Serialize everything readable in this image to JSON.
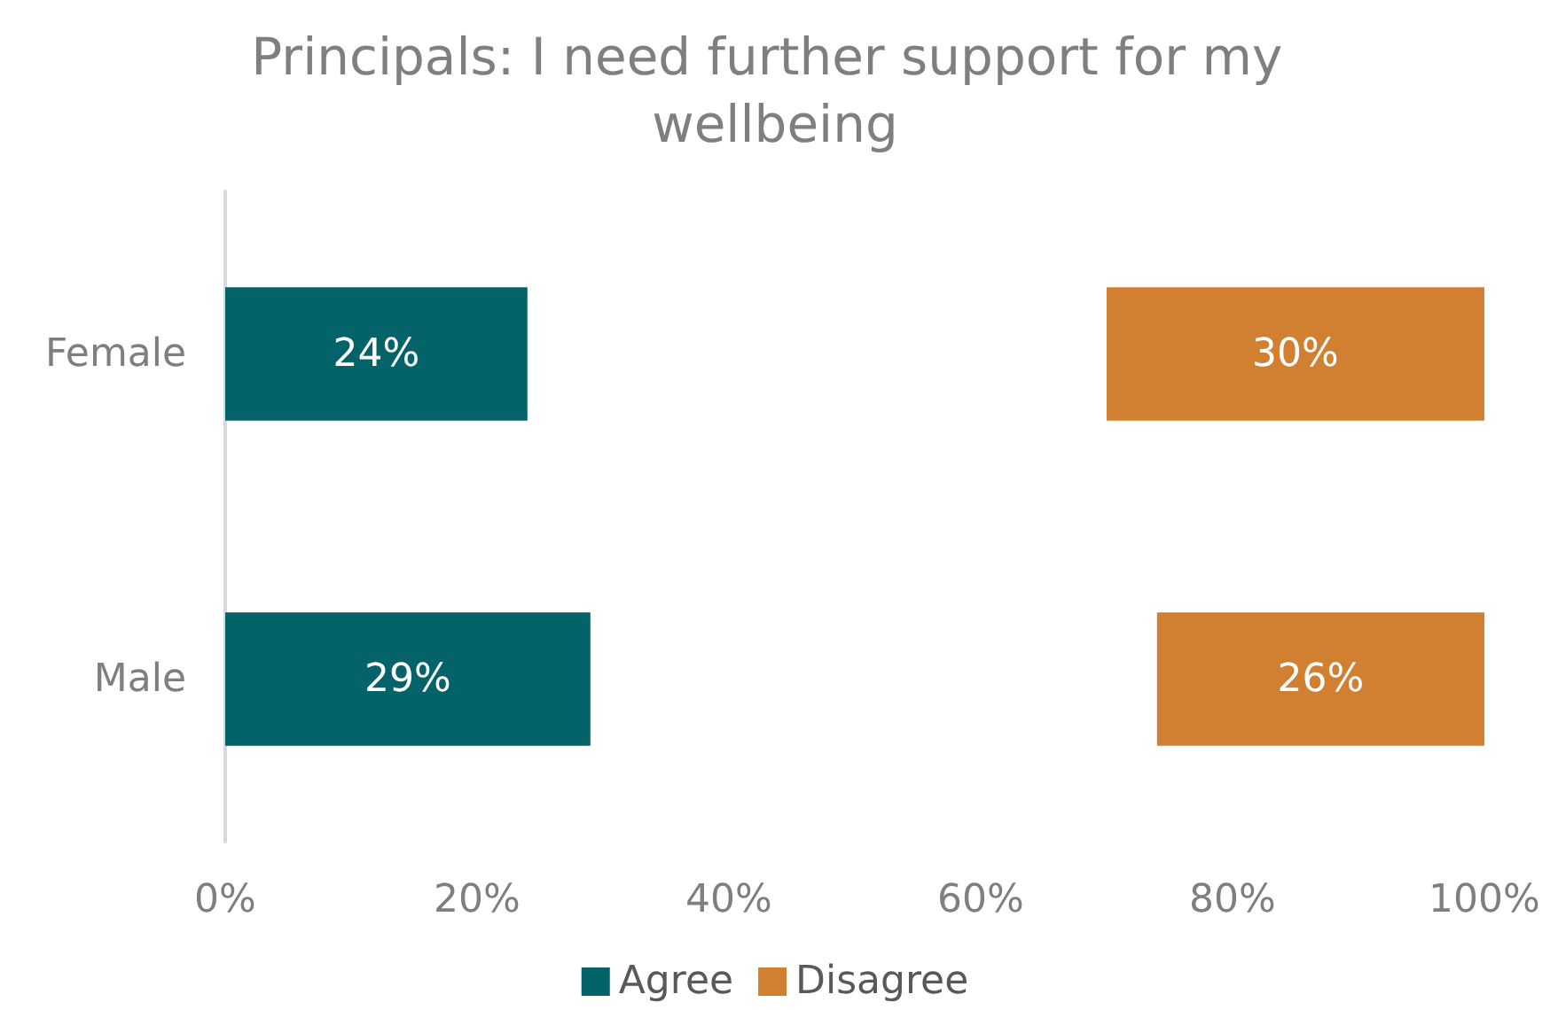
{
  "chart_data": {
    "type": "bar",
    "orientation": "horizontal",
    "title": "Principals: I need further support for my wellbeing",
    "categories": [
      "Female",
      "Male"
    ],
    "series": [
      {
        "name": "Agree",
        "color": "#036369",
        "values": [
          24,
          29
        ],
        "base": [
          0,
          0
        ],
        "value_labels": [
          "24%",
          "29%"
        ]
      },
      {
        "name": "Disagree",
        "color": "#d17f30",
        "values": [
          30,
          26
        ],
        "base": [
          70,
          74
        ],
        "value_labels": [
          "30%",
          "26%"
        ]
      }
    ],
    "xlim": [
      0,
      100
    ],
    "xticks": [
      {
        "value": 0,
        "label": "0%"
      },
      {
        "value": 20,
        "label": "20%"
      },
      {
        "value": 40,
        "label": "40%"
      },
      {
        "value": 60,
        "label": "60%"
      },
      {
        "value": 80,
        "label": "80%"
      },
      {
        "value": 100,
        "label": "100%"
      }
    ],
    "grid": false,
    "legend": "bottom"
  }
}
